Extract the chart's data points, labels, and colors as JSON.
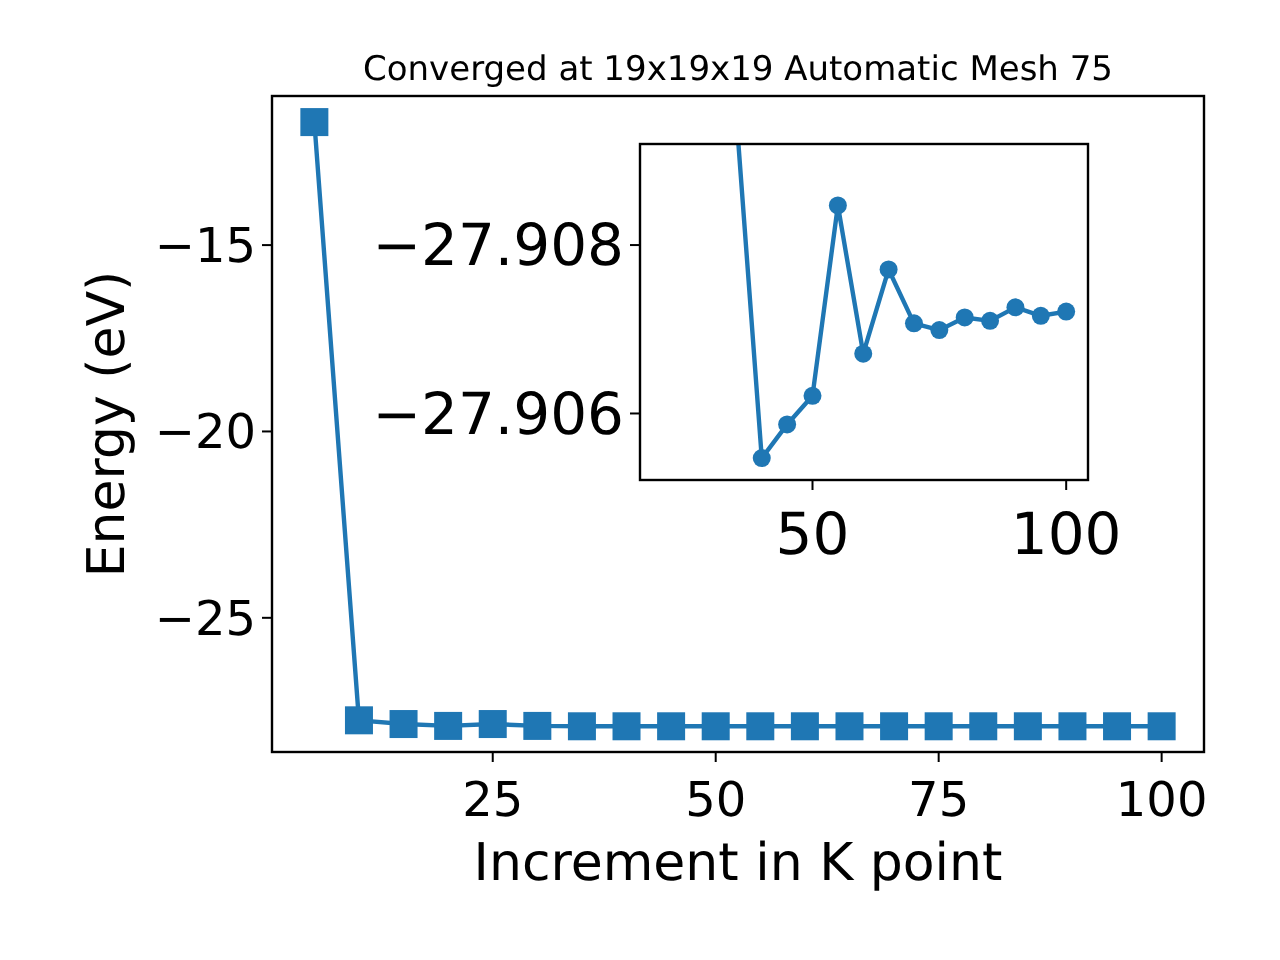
{
  "chart_data": [
    {
      "type": "line",
      "title": "Converged at 19x19x19 Automatic Mesh 75",
      "xlabel": "Increment in K point",
      "ylabel": "Energy (eV)",
      "marker": "square",
      "line_style": "solid",
      "x": [
        5,
        10,
        15,
        20,
        25,
        30,
        35,
        40,
        45,
        50,
        55,
        60,
        65,
        70,
        75,
        80,
        85,
        90,
        95,
        100
      ],
      "series": [
        {
          "color": "#1f77b4",
          "values": [
            -11.7,
            -27.75,
            -27.85,
            -27.9,
            -27.85,
            -27.9,
            -27.91,
            -27.91,
            -27.91,
            -27.91,
            -27.91,
            -27.91,
            -27.91,
            -27.91,
            -27.91,
            -27.91,
            -27.91,
            -27.91,
            -27.91,
            -27.91
          ]
        }
      ],
      "xlim": [
        0.25,
        104.75
      ],
      "ylim": [
        -28.6,
        -11.0
      ],
      "xticks": [
        25,
        50,
        75,
        100
      ],
      "yticks": [
        {
          "value": -15,
          "label": "−15"
        },
        {
          "value": -20,
          "label": "−20"
        },
        {
          "value": -25,
          "label": "−25"
        }
      ]
    },
    {
      "type": "line",
      "marker": "circle",
      "line_style": "solid",
      "series": [
        {
          "color": "#1f77b4",
          "x": [
            35.4,
            40,
            45,
            50,
            55,
            60,
            65,
            70,
            75,
            80,
            85,
            90,
            95,
            100
          ],
          "values": [
            -27.9092,
            -27.90547,
            -27.90587,
            -27.90621,
            -27.90847,
            -27.90671,
            -27.90771,
            -27.90707,
            -27.90699,
            -27.90714,
            -27.9071,
            -27.90726,
            -27.90716,
            -27.90721
          ]
        }
      ],
      "xlim": [
        16,
        104.3
      ],
      "ylim": [
        -27.90521,
        -27.9092
      ],
      "xticks": [
        50,
        100
      ],
      "yticks": [
        {
          "value": -27.908,
          "label": "−27.908"
        },
        {
          "value": -27.906,
          "label": "−27.906"
        }
      ]
    }
  ]
}
